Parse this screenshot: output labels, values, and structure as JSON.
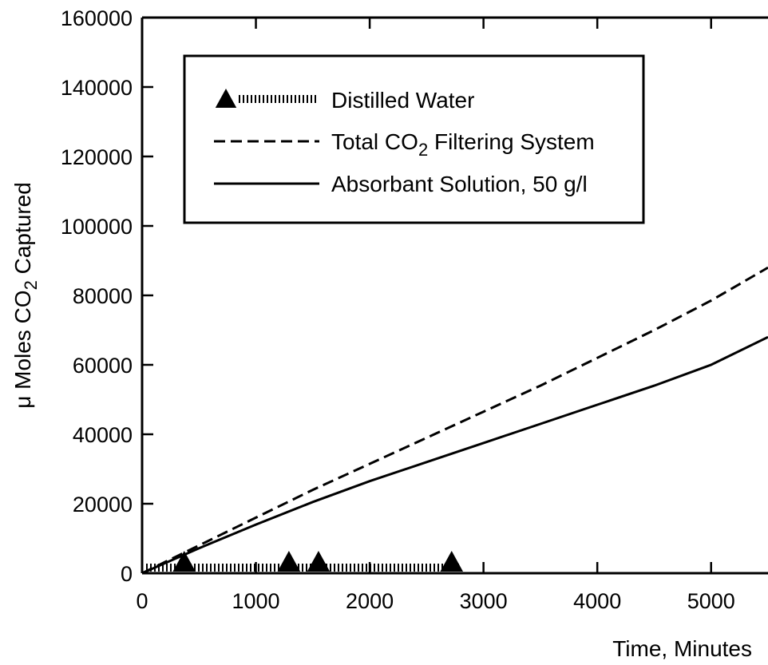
{
  "chart_data": {
    "type": "line",
    "xlabel": "Time, Minutes",
    "ylabel": "μ Moles CO2 Captured",
    "ylabel_parts": {
      "prefix": "μ Moles CO",
      "sub": "2",
      "suffix": " Captured"
    },
    "xlim": [
      0,
      5500
    ],
    "ylim": [
      0,
      160000
    ],
    "x_ticks": [
      0,
      1000,
      2000,
      3000,
      4000,
      5000
    ],
    "y_ticks": [
      0,
      20000,
      40000,
      60000,
      80000,
      100000,
      120000,
      140000,
      160000
    ],
    "grid": false,
    "legend_position": "top-left",
    "series": [
      {
        "name": "Distilled Water",
        "style": "hatched-with-triangle-markers",
        "x": [
          0,
          5500
        ],
        "y": [
          0,
          0
        ],
        "markers": {
          "x": [
            370,
            1290,
            1550,
            2720
          ],
          "y": [
            1500,
            2500,
            2500,
            2500
          ]
        }
      },
      {
        "name": "Total CO2 Filtering System",
        "name_parts": {
          "prefix": "Total CO",
          "sub": "2",
          "suffix": "  Filtering System"
        },
        "style": "dashed",
        "x": [
          0,
          500,
          1000,
          1500,
          2000,
          2500,
          3000,
          3500,
          4000,
          4500,
          5000,
          5500
        ],
        "y": [
          0,
          8000,
          16000,
          24000,
          31500,
          39000,
          46500,
          54000,
          62000,
          70000,
          78500,
          88000
        ]
      },
      {
        "name": "Absorbant Solution,  50 g/l",
        "style": "solid",
        "x": [
          0,
          500,
          1000,
          1500,
          2000,
          2500,
          3000,
          3500,
          4000,
          4500,
          5000,
          5500
        ],
        "y": [
          0,
          7200,
          14000,
          20500,
          26500,
          32000,
          37500,
          43000,
          48500,
          54000,
          60000,
          68000
        ]
      }
    ]
  }
}
